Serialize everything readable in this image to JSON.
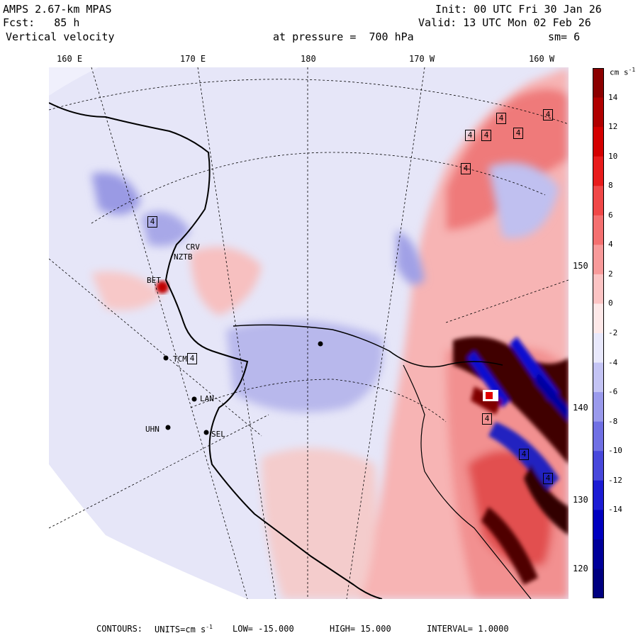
{
  "header": {
    "model": "AMPS 2.67-km MPAS",
    "fcst_label": "Fcst:",
    "fcst_value": "85 h",
    "field": "Vertical velocity",
    "init": "Init: 00 UTC Fri 30 Jan 26",
    "valid": "Valid: 13 UTC Mon 02 Feb 26",
    "level_label": "at pressure =",
    "level_value": "700 hPa",
    "smoothing": "sm= 6"
  },
  "longitudes": [
    "160 E",
    "170 E",
    "180",
    "170 W",
    "160 W"
  ],
  "latitudes": [
    "150 W",
    "140 W",
    "130 W",
    "120 W"
  ],
  "colorbar": {
    "units": "cm s",
    "units_exp": "-1",
    "ticks": [
      "14",
      "12",
      "10",
      "8",
      "6",
      "4",
      "2",
      "0",
      "-2",
      "-4",
      "-6",
      "-8",
      "-10",
      "-12",
      "-14"
    ],
    "colors": [
      "#8b0000",
      "#b00000",
      "#d40000",
      "#e81c1c",
      "#f04848",
      "#f47070",
      "#f89a9a",
      "#fcc4c4",
      "#fde8e8",
      "#e8e8fb",
      "#c4c4f4",
      "#9a9aec",
      "#7070e4",
      "#4848dc",
      "#1c1cd4",
      "#0000c0",
      "#00009a",
      "#000080"
    ]
  },
  "stations": [
    "CRV",
    "NZTB",
    "BET",
    "TCM",
    "LAN",
    "UHN",
    "SEL"
  ],
  "box_label": "4",
  "footer": {
    "contours": "CONTOURS:",
    "units": "UNITS=cm s",
    "units_exp": "-1",
    "low": "LOW= -15.000",
    "high": "HIGH= 15.000",
    "interval": "INTERVAL= 1.0000"
  }
}
